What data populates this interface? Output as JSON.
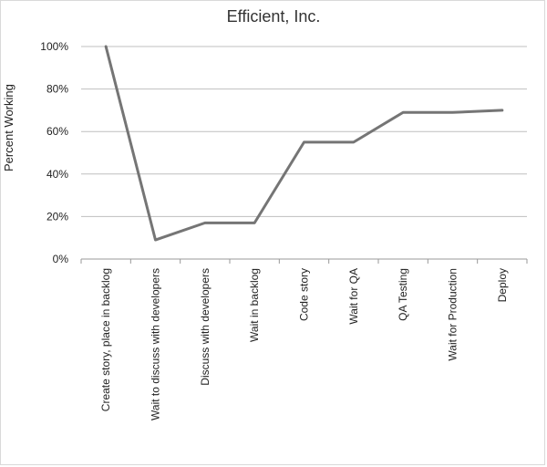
{
  "chart_data": {
    "type": "line",
    "title": "Efficient, Inc.",
    "xlabel": "",
    "ylabel": "Percent Working",
    "ylim": [
      0,
      100
    ],
    "yticks": [
      "0%",
      "20%",
      "40%",
      "60%",
      "80%",
      "100%"
    ],
    "categories": [
      "Create story, place in backlog",
      "Wait to discuss with developers",
      "Discuss with developers",
      "Wait in backlog",
      "Code story",
      "Wait for QA",
      "QA Testing",
      "Wait for Production",
      "Deploy"
    ],
    "series": [
      {
        "values": [
          100,
          9,
          17,
          17,
          55,
          55,
          69,
          69,
          70
        ]
      }
    ],
    "grid": true,
    "legend": "none",
    "colors": {
      "line": "#757575",
      "grid": "#bfbfbf",
      "axis": "#999999"
    }
  }
}
